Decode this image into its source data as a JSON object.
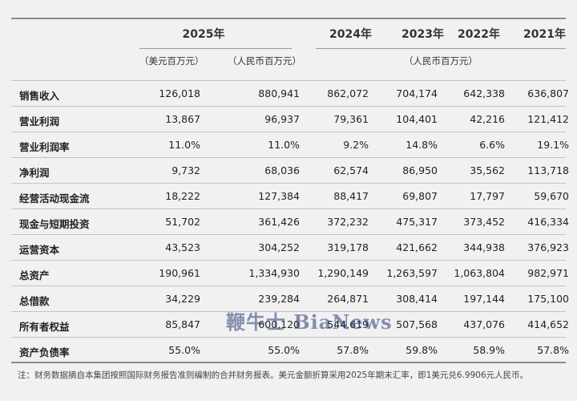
{
  "header": {
    "years": [
      "2025年",
      "2024年",
      "2023年",
      "2022年",
      "2021年"
    ],
    "units": [
      "（美元百万元）",
      "（人民币百万元）",
      "（人民币百万元）"
    ]
  },
  "rows": [
    {
      "label": "销售收入",
      "values": [
        "126,018",
        "880,941",
        "862,072",
        "704,174",
        "642,338",
        "636,807"
      ]
    },
    {
      "label": "营业利润",
      "values": [
        "13,867",
        "96,937",
        "79,361",
        "104,401",
        "42,216",
        "121,412"
      ]
    },
    {
      "label": "营业利润率",
      "values": [
        "11.0%",
        "11.0%",
        "9.2%",
        "14.8%",
        "6.6%",
        "19.1%"
      ]
    },
    {
      "label": "净利润",
      "values": [
        "9,732",
        "68,036",
        "62,574",
        "86,950",
        "35,562",
        "113,718"
      ]
    },
    {
      "label": "经营活动现金流",
      "values": [
        "18,222",
        "127,384",
        "88,417",
        "69,807",
        "17,797",
        "59,670"
      ]
    },
    {
      "label": "现金与短期投资",
      "values": [
        "51,702",
        "361,426",
        "372,232",
        "475,317",
        "373,452",
        "416,334"
      ]
    },
    {
      "label": "运营资本",
      "values": [
        "43,523",
        "304,252",
        "319,178",
        "421,662",
        "344,938",
        "376,923"
      ]
    },
    {
      "label": "总资产",
      "values": [
        "190,961",
        "1,334,930",
        "1,290,149",
        "1,263,597",
        "1,063,804",
        "982,971"
      ]
    },
    {
      "label": "总借款",
      "values": [
        "34,229",
        "239,284",
        "264,871",
        "308,414",
        "197,144",
        "175,100"
      ]
    },
    {
      "label": "所有者权益",
      "values": [
        "85,847",
        "600,120",
        "544,619",
        "507,568",
        "437,076",
        "414,652"
      ]
    },
    {
      "label": "资产负债率",
      "values": [
        "55.0%",
        "55.0%",
        "57.8%",
        "59.8%",
        "58.9%",
        "57.8%"
      ]
    }
  ],
  "note": "注：财务数据摘自本集团按照国际财务报告准则编制的合并财务报表。美元金额折算采用2025年期末汇率，即1美元兑6.9906元人民币。",
  "watermark": "鞭牛士 BiaNews"
}
